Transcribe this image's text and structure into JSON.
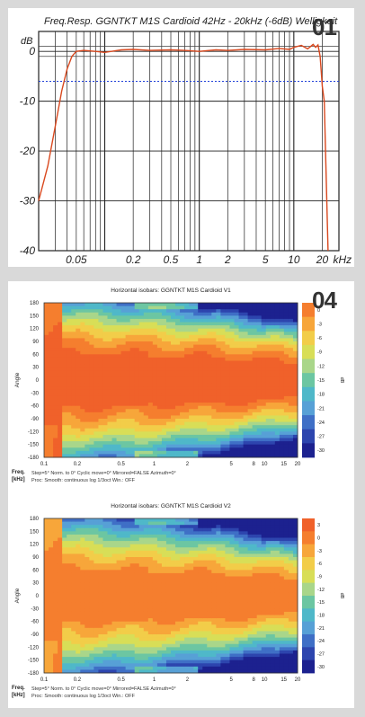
{
  "figure_numbers": {
    "top": "01",
    "bottom": "04"
  },
  "chart_data": [
    {
      "type": "line",
      "title": "Freq.Resp. GGNTKT M1S Cardioid 42Hz - 20kHz (-6dB) Welligkeit",
      "ylabel": "dB",
      "xlabel": "kHz",
      "x_scale": "log",
      "xlim": [
        0.02,
        30
      ],
      "ylim": [
        -40,
        4
      ],
      "x_tick_labels": [
        "0.05",
        "0.2",
        "0.5",
        "1",
        "2",
        "5",
        "10",
        "20"
      ],
      "x_tick_values": [
        0.05,
        0.2,
        0.5,
        1,
        2,
        5,
        10,
        20
      ],
      "y_ticks": [
        0,
        -10,
        -20,
        -30,
        -40
      ],
      "reference_lines": {
        "tolerance_upper": 1,
        "tolerance_lower": -1,
        "minus6db": -6
      },
      "colors": {
        "curve": "#d9481e",
        "minus6db": "#1f3fd8",
        "grid": "#222222"
      },
      "series": [
        {
          "x": [
            0.02,
            0.025,
            0.03,
            0.035,
            0.04,
            0.045,
            0.05,
            0.06,
            0.08,
            0.1,
            0.15,
            0.2,
            0.3,
            0.5,
            0.7,
            1,
            1.5,
            2,
            3,
            5,
            7,
            9,
            10,
            12,
            14,
            16,
            17,
            18,
            19,
            20,
            21,
            22,
            23
          ],
          "y": [
            -30,
            -23,
            -15,
            -8,
            -3.5,
            -1,
            0,
            0.2,
            0,
            -0.2,
            0.3,
            0.4,
            0.2,
            0.3,
            0.2,
            0,
            0.3,
            0.2,
            0.4,
            0.3,
            0.6,
            0.4,
            0.8,
            1.2,
            0.5,
            1.4,
            0.8,
            1.3,
            -1,
            -7,
            -10,
            -25,
            -40
          ]
        }
      ]
    },
    {
      "type": "heatmap",
      "title": "Horizontal isobars: GGNTKT M1S Cardioid V1",
      "ylabel": "Angle",
      "xlabel": "Freq. [kHz]",
      "x_scale": "log",
      "x_tick_labels": [
        "0.1",
        "0.2",
        "0.5",
        "1",
        "2",
        "5",
        "8",
        "10",
        "15",
        "20"
      ],
      "x_tick_values": [
        0.1,
        0.2,
        0.5,
        1,
        2,
        5,
        8,
        10,
        15,
        20
      ],
      "y_ticks": [
        180,
        150,
        120,
        90,
        60,
        30,
        0,
        -30,
        -60,
        -90,
        -120,
        -150,
        -180
      ],
      "footer_line1": "Step=5°   Norm. to 0°   Cyclic move=0°   Mirrored=FALSE   Azimuth=0°",
      "footer_line2": "Proc: Smooth: continuous log 1/3oct   Win.: OFF",
      "colorbar_unit": "dB",
      "colorbar_levels": [
        0,
        -3,
        -6,
        -9,
        -12,
        -15,
        -18,
        -21,
        -24,
        -27,
        -30
      ]
    },
    {
      "type": "heatmap",
      "title": "Horizontal isobars: GGNTKT M1S Cardioid V2",
      "ylabel": "Angle",
      "xlabel": "Freq. [kHz]",
      "x_scale": "log",
      "x_tick_labels": [
        "0.1",
        "0.2",
        "0.5",
        "1",
        "2",
        "5",
        "8",
        "10",
        "15",
        "20"
      ],
      "x_tick_values": [
        0.1,
        0.2,
        0.5,
        1,
        2,
        5,
        8,
        10,
        15,
        20
      ],
      "y_ticks": [
        180,
        150,
        120,
        90,
        60,
        30,
        0,
        -30,
        -60,
        -90,
        -120,
        -150,
        -180
      ],
      "footer_line1": "Step=5°   Norm. to 0°   Cyclic move=0°   Mirrored=FALSE   Azimuth=0°",
      "footer_line2": "Proc: Smooth: continuous log 1/3oct   Win.: OFF",
      "colorbar_unit": "dB",
      "colorbar_levels": [
        3,
        0,
        -3,
        -6,
        -9,
        -12,
        -15,
        -18,
        -21,
        -24,
        -27,
        -30
      ]
    }
  ],
  "colorbar_colors": [
    "#f0612a",
    "#f57e2e",
    "#f7a63a",
    "#f2cd49",
    "#d8de57",
    "#a9d68a",
    "#6cc6a2",
    "#4fb8c9",
    "#57a0d6",
    "#3f6fc6",
    "#2d45ae",
    "#1c218f"
  ],
  "footer_labels": {
    "freq": "Freq.",
    "unit": "[kHz]"
  }
}
